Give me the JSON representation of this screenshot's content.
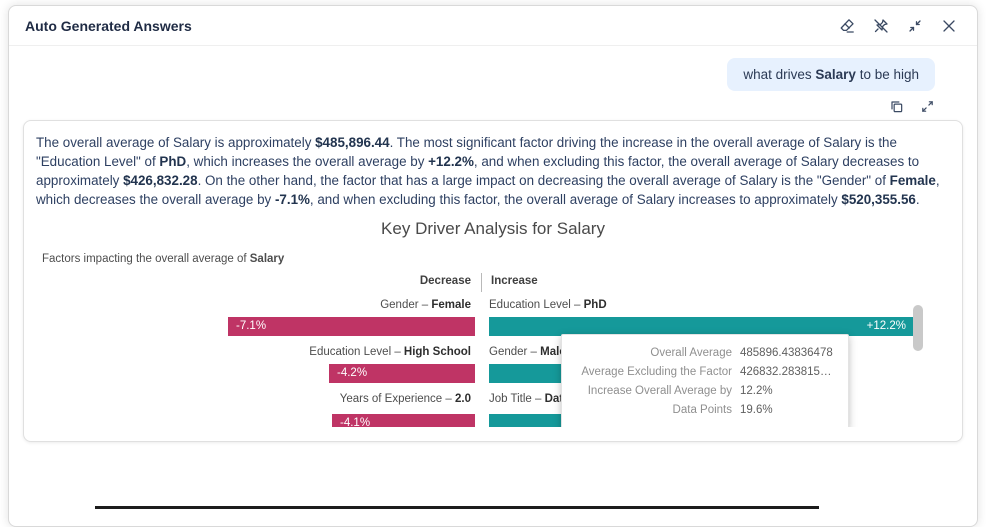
{
  "panel": {
    "title": "Auto Generated Answers"
  },
  "icons": {
    "header": [
      "eraser",
      "unpin",
      "collapse",
      "close"
    ],
    "card": [
      "copy",
      "expand"
    ]
  },
  "question": {
    "segments": [
      {
        "t": "what drives "
      },
      {
        "t": "Salary",
        "b": true
      },
      {
        "t": " to be high"
      }
    ]
  },
  "answer": {
    "segments": [
      {
        "t": "The overall average of Salary is approximately "
      },
      {
        "t": "$485,896.44",
        "b": true
      },
      {
        "t": ". The most significant factor driving the increase in the overall average of Salary is the \"Education Level\" of "
      },
      {
        "t": "PhD",
        "b": true
      },
      {
        "t": ", which increases the overall average by "
      },
      {
        "t": "+12.2%",
        "b": true
      },
      {
        "t": ", and when excluding this factor, the overall average of Salary decreases to approximately "
      },
      {
        "t": "$426,832.28",
        "b": true
      },
      {
        "t": ". On the other hand, the factor that has a large impact on decreasing the overall average of Salary is the \"Gender\" of "
      },
      {
        "t": "Female",
        "b": true
      },
      {
        "t": ", which decreases the overall average by "
      },
      {
        "t": "-7.1%",
        "b": true
      },
      {
        "t": ", and when excluding this factor, the overall average of Salary increases to approximately "
      },
      {
        "t": "$520,355.56",
        "b": true
      },
      {
        "t": "."
      }
    ]
  },
  "chart_data": {
    "type": "bar",
    "title": "Key Driver Analysis for Salary",
    "subtitle_segments": [
      {
        "t": "Factors impacting the overall average of "
      },
      {
        "t": "Salary",
        "b": true
      }
    ],
    "column_headers": {
      "decrease": "Decrease",
      "increase": "Increase"
    },
    "rows": [
      {
        "decrease": {
          "dim": "Gender – ",
          "value": "Female",
          "pct": -7.1,
          "pct_label": "-7.1%"
        },
        "increase": {
          "dim": "Education Level – ",
          "value": "PhD",
          "pct": 12.2,
          "pct_label": "+12.2%"
        }
      },
      {
        "decrease": {
          "dim": "Education Level – ",
          "value": "High School",
          "pct": -4.2,
          "pct_label": "-4.2%"
        },
        "increase": {
          "dim": "Gender – ",
          "value": "Male",
          "pct": null,
          "pct_label": ""
        }
      },
      {
        "decrease": {
          "dim": "Years of Experience – ",
          "value": "2.0",
          "pct": -4.1,
          "pct_label": "-4.1%"
        },
        "increase": {
          "dim": "Job Title – ",
          "value": "Dat",
          "pct": 6.2,
          "pct_label": "+6.2%"
        }
      }
    ]
  },
  "tooltip": {
    "rows": [
      {
        "label": "Overall Average",
        "value": "485896.43836478"
      },
      {
        "label": "Average Excluding the Factor",
        "value": "426832.283815…"
      },
      {
        "label": "Increase Overall Average by",
        "value": "12.2%"
      },
      {
        "label": "Data Points",
        "value": "19.6%"
      }
    ]
  },
  "colors": {
    "decrease_bar": "#bf3465",
    "increase_bar": "#15999a",
    "question_bubble": "#e7f1fe"
  }
}
